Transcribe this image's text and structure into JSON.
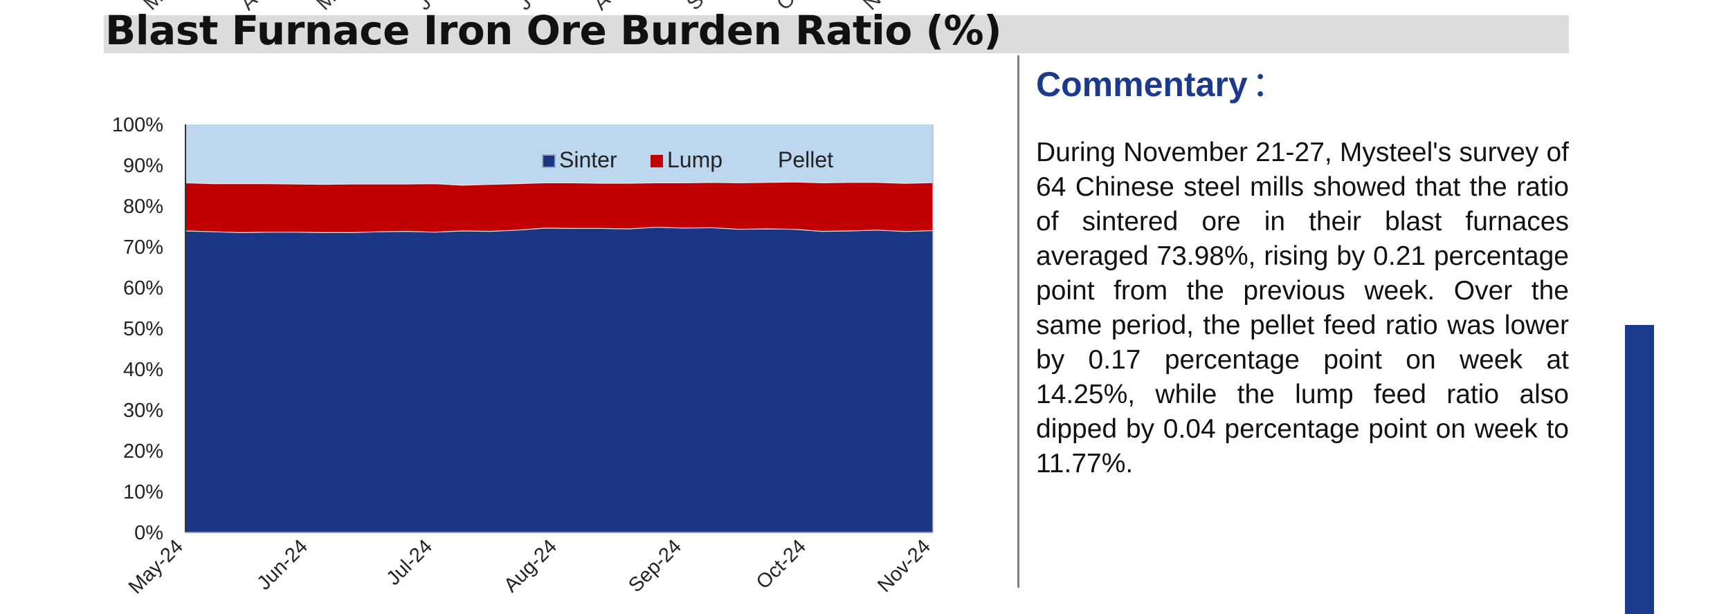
{
  "page": {
    "title": "Blast Furnace Iron Ore Burden Ratio (%)",
    "top_cut_labels": [
      "M",
      "A",
      "M",
      "J",
      "J",
      "A",
      "S",
      "O",
      "N"
    ]
  },
  "commentary": {
    "heading": "Commentary",
    "colon": "：",
    "body": "During November 21-27, Mysteel's survey of 64 Chinese steel mills showed that the ratio of sintered ore in their blast furnaces averaged 73.98%, rising by 0.21 percentage point from the previous week. Over the same period, the pellet feed ratio was lower by 0.17 percentage point on week at 14.25%, while the lump feed ratio also dipped by 0.04 percentage point on week to 11.77%."
  },
  "colors": {
    "sinter": "#1b3585",
    "lump": "#c00000",
    "pellet": "#bdd7ee",
    "accent": "#1b3a8c"
  },
  "chart_data": {
    "type": "area",
    "stacked": true,
    "percent_stacked": true,
    "x_tick_labels": [
      "May-24",
      "Jun-24",
      "Jul-24",
      "Aug-24",
      "Sep-24",
      "Oct-24",
      "Nov-24"
    ],
    "x": [
      "May-24 wk1",
      "May-24 wk2",
      "May-24 wk3",
      "May-24 wk4",
      "Jun-24 wk1",
      "Jun-24 wk2",
      "Jun-24 wk3",
      "Jun-24 wk4",
      "Jul-24 wk1",
      "Jul-24 wk2",
      "Jul-24 wk3",
      "Jul-24 wk4",
      "Aug-24 wk1",
      "Aug-24 wk2",
      "Aug-24 wk3",
      "Aug-24 wk4",
      "Sep-24 wk1",
      "Sep-24 wk2",
      "Sep-24 wk3",
      "Sep-24 wk4",
      "Oct-24 wk1",
      "Oct-24 wk2",
      "Oct-24 wk3",
      "Oct-24 wk4",
      "Nov-24 wk1",
      "Nov-24 wk2",
      "Nov-24 wk3",
      "Nov-24 wk4"
    ],
    "series": [
      {
        "name": "Sinter",
        "values": [
          73.9,
          73.7,
          73.5,
          73.6,
          73.6,
          73.5,
          73.5,
          73.7,
          73.8,
          73.6,
          73.9,
          73.8,
          74.1,
          74.6,
          74.5,
          74.5,
          74.4,
          74.8,
          74.6,
          74.7,
          74.3,
          74.4,
          74.3,
          73.8,
          73.9,
          74.1,
          73.77,
          73.98
        ]
      },
      {
        "name": "Lump",
        "values": [
          11.8,
          11.8,
          12.0,
          11.9,
          11.8,
          11.8,
          11.9,
          11.7,
          11.6,
          11.9,
          11.2,
          11.5,
          11.4,
          11.1,
          11.2,
          11.1,
          11.2,
          10.9,
          11.1,
          11.1,
          11.4,
          11.4,
          11.6,
          11.9,
          11.9,
          11.7,
          11.81,
          11.77
        ]
      },
      {
        "name": "Pellet",
        "values": [
          14.3,
          14.5,
          14.5,
          14.5,
          14.6,
          14.7,
          14.6,
          14.6,
          14.6,
          14.5,
          14.9,
          14.7,
          14.5,
          14.3,
          14.3,
          14.4,
          14.4,
          14.3,
          14.3,
          14.2,
          14.3,
          14.2,
          14.1,
          14.3,
          14.2,
          14.2,
          14.42,
          14.25
        ]
      }
    ],
    "y_tick_labels": [
      "0%",
      "10%",
      "20%",
      "30%",
      "40%",
      "50%",
      "60%",
      "70%",
      "80%",
      "90%",
      "100%"
    ],
    "ylim": [
      0,
      100
    ],
    "legend": [
      "Sinter",
      "Lump",
      "Pellet"
    ],
    "legend_position": "inside top-right",
    "grid": false
  }
}
